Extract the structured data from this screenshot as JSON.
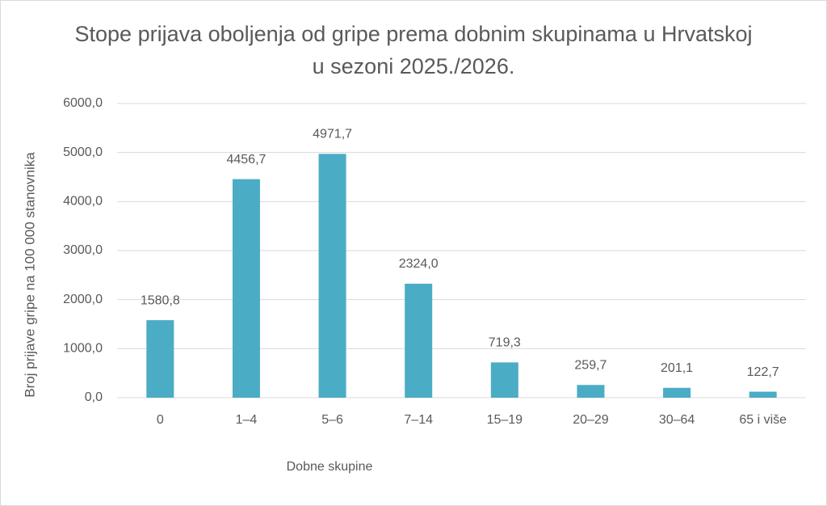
{
  "chart_data": {
    "type": "bar",
    "title": "Stope prijava oboljenja od gripe prema dobnim skupinama u Hrvatskoj u sezoni  2025./2026.",
    "x_label": "Dobne skupine",
    "y_label": "Broj prijave gripe na 100 000 stanovnika",
    "categories": [
      "0",
      "1–4",
      "5–6",
      "7–14",
      "15–19",
      "20–29",
      "30–64",
      "65 i više"
    ],
    "values": [
      1580.8,
      4456.7,
      4971.7,
      2324.0,
      719.3,
      259.7,
      201.1,
      122.7
    ],
    "value_labels": [
      "1580,8",
      "4456,7",
      "4971,7",
      "2324,0",
      "719,3",
      "259,7",
      "201,1",
      "122,7"
    ],
    "color": "#4bacc6",
    "ylim": [
      0,
      6000
    ],
    "yticks": [
      {
        "value": 0,
        "label": "0,0"
      },
      {
        "value": 1000,
        "label": "1000,0"
      },
      {
        "value": 2000,
        "label": "2000,0"
      },
      {
        "value": 3000,
        "label": "3000,0"
      },
      {
        "value": 4000,
        "label": "4000,0"
      },
      {
        "value": 5000,
        "label": "5000,0"
      },
      {
        "value": 6000,
        "label": "6000,0"
      }
    ],
    "grid": true
  }
}
